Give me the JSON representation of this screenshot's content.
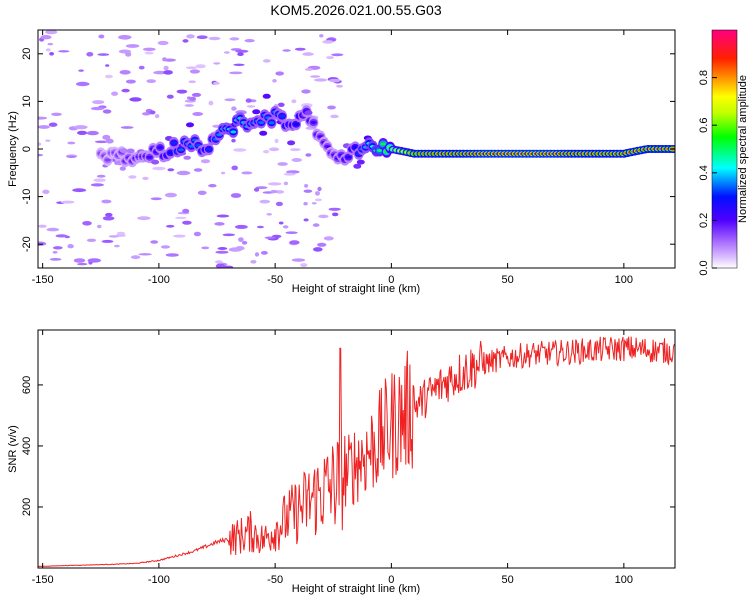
{
  "chart_data": [
    {
      "type": "heatmap",
      "title": "KOM5.2026.021.00.55.G03",
      "xlabel": "Height of straight line (km)",
      "ylabel": "Frequency (Hz)",
      "xlim": [
        -152,
        122
      ],
      "ylim": [
        -25,
        25
      ],
      "xticks": [
        -150,
        -100,
        -50,
        0,
        50,
        100
      ],
      "yticks": [
        -20,
        -10,
        0,
        10,
        20
      ],
      "colorbar": {
        "label": "Normalized spectral amplitude",
        "range": [
          0,
          1
        ],
        "ticks": [
          0.0,
          0.2,
          0.4,
          0.6,
          0.8
        ],
        "colors": [
          "#ffffff",
          "#c8a0ff",
          "#7030ff",
          "#0000ff",
          "#00ffff",
          "#00ff00",
          "#ffff00",
          "#ff8000",
          "#ff0000",
          "#ff0080"
        ]
      },
      "ridge": {
        "x": [
          -120,
          -110,
          -100,
          -95,
          -90,
          -85,
          -80,
          -75,
          -70,
          -65,
          -60,
          -55,
          -50,
          -45,
          -40,
          -35,
          -30,
          -25,
          -20,
          -15,
          -10,
          -5,
          0,
          10,
          20,
          30,
          40,
          50,
          60,
          70,
          80,
          90,
          100,
          110,
          120
        ],
        "f": [
          -2,
          -1.5,
          -1,
          0,
          1,
          1.5,
          0.5,
          2.5,
          4,
          6,
          4.5,
          6,
          7,
          5,
          6,
          7,
          1,
          -1,
          -2,
          0,
          1,
          0,
          0,
          -1,
          -1,
          -1,
          -1,
          -1,
          -1,
          -1,
          -1,
          -1,
          -1,
          0,
          0
        ],
        "amp": [
          0.15,
          0.2,
          0.25,
          0.3,
          0.35,
          0.35,
          0.3,
          0.35,
          0.4,
          0.4,
          0.35,
          0.35,
          0.35,
          0.3,
          0.3,
          0.25,
          0.2,
          0.2,
          0.25,
          0.3,
          0.4,
          0.5,
          0.6,
          0.8,
          0.85,
          0.85,
          0.9,
          0.9,
          0.9,
          0.9,
          0.85,
          0.85,
          0.85,
          0.85,
          0.85
        ]
      }
    },
    {
      "type": "line",
      "xlabel": "Height of straight line (km)",
      "ylabel": "SNR (v/v)",
      "xlim": [
        -152,
        122
      ],
      "ylim": [
        0,
        780
      ],
      "xticks": [
        -150,
        -100,
        -50,
        0,
        50,
        100
      ],
      "yticks": [
        200,
        400,
        600
      ],
      "series": [
        {
          "name": "SNR",
          "color": "#ee2222",
          "x": [
            -152,
            -140,
            -130,
            -120,
            -110,
            -100,
            -95,
            -90,
            -85,
            -80,
            -75,
            -70,
            -65,
            -60,
            -55,
            -50,
            -45,
            -40,
            -35,
            -30,
            -25,
            -20,
            -15,
            -10,
            -5,
            0,
            5,
            10,
            15,
            20,
            25,
            30,
            35,
            40,
            50,
            60,
            70,
            80,
            90,
            100,
            110,
            120
          ],
          "y": [
            5,
            8,
            10,
            12,
            15,
            25,
            35,
            45,
            55,
            70,
            85,
            95,
            105,
            120,
            90,
            130,
            160,
            190,
            220,
            250,
            270,
            300,
            350,
            380,
            420,
            470,
            500,
            530,
            560,
            590,
            620,
            640,
            660,
            670,
            690,
            700,
            705,
            710,
            715,
            720,
            715,
            710
          ]
        }
      ]
    }
  ]
}
